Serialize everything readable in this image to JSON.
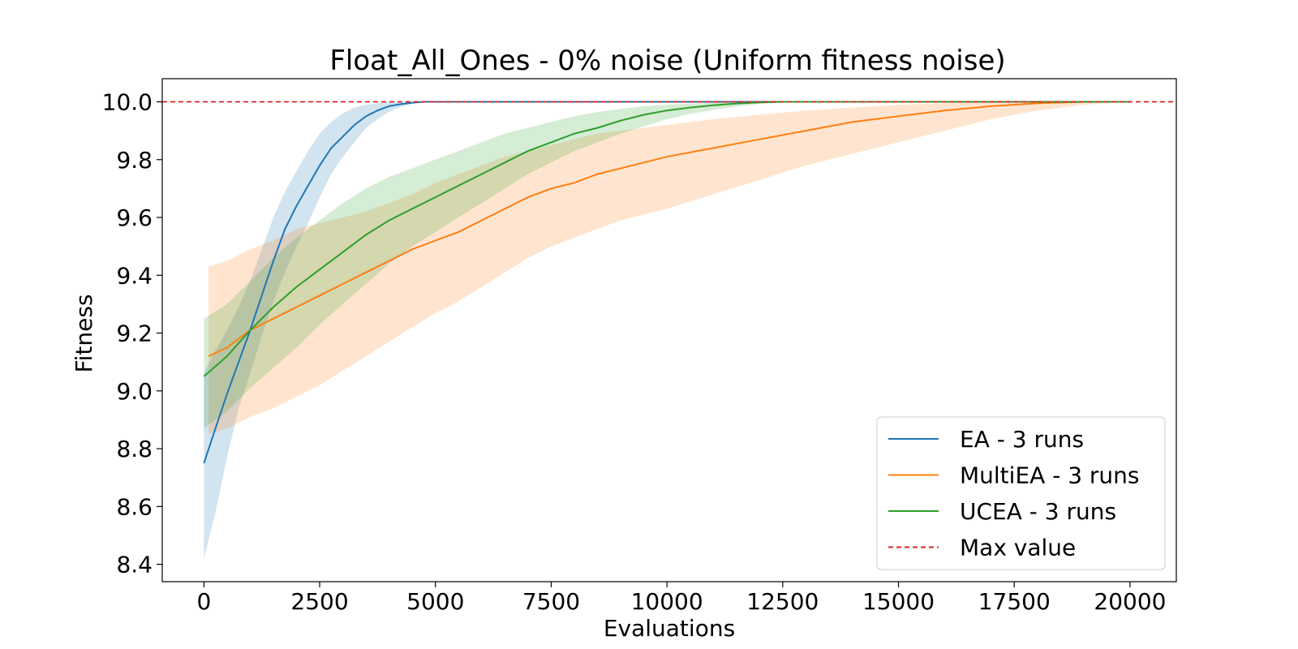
{
  "chart_data": {
    "type": "line",
    "title": "Float_All_Ones - 0% noise (Uniform fitness noise)",
    "xlabel": "Evaluations",
    "ylabel": "Fitness",
    "xlim": [
      -900,
      21000
    ],
    "ylim": [
      8.34,
      10.08
    ],
    "xticks": [
      0,
      2500,
      5000,
      7500,
      10000,
      12500,
      15000,
      17500,
      20000
    ],
    "yticks": [
      8.4,
      8.6,
      8.8,
      9.0,
      9.2,
      9.4,
      9.6,
      9.8,
      10.0
    ],
    "ytick_labels": [
      "8.4",
      "8.6",
      "8.8",
      "9.0",
      "9.2",
      "9.4",
      "9.6",
      "9.8",
      "10.0"
    ],
    "legend_position": "lower-right",
    "series": [
      {
        "name": "EA - 3 runs",
        "color": "#1f77b4",
        "x": [
          0,
          250,
          500,
          750,
          1000,
          1250,
          1500,
          1750,
          2000,
          2250,
          2500,
          2750,
          3000,
          3250,
          3500,
          3750,
          4000,
          4250,
          4500,
          4750,
          5000,
          20000
        ],
        "mean": [
          8.75,
          8.87,
          8.99,
          9.1,
          9.21,
          9.33,
          9.45,
          9.56,
          9.64,
          9.71,
          9.78,
          9.84,
          9.88,
          9.92,
          9.95,
          9.97,
          9.985,
          9.992,
          9.997,
          10.0,
          10.0,
          10.0
        ],
        "lower": [
          8.42,
          8.58,
          8.77,
          8.94,
          9.06,
          9.19,
          9.31,
          9.41,
          9.5,
          9.58,
          9.67,
          9.75,
          9.81,
          9.86,
          9.91,
          9.94,
          9.965,
          9.982,
          9.993,
          10.0,
          10.0,
          10.0
        ],
        "upper": [
          9.06,
          9.14,
          9.21,
          9.29,
          9.38,
          9.49,
          9.6,
          9.69,
          9.76,
          9.83,
          9.89,
          9.93,
          9.96,
          9.98,
          9.99,
          9.995,
          10.0,
          10.0,
          10.0,
          10.0,
          10.0,
          10.0
        ]
      },
      {
        "name": "MultiEA - 3 runs",
        "color": "#ff7f0e",
        "x": [
          100,
          500,
          1000,
          1500,
          2000,
          2500,
          3000,
          3500,
          4000,
          4500,
          5000,
          5500,
          6000,
          6500,
          7000,
          7500,
          8000,
          8500,
          9000,
          9500,
          10000,
          11000,
          12000,
          13000,
          14000,
          15000,
          16000,
          17000,
          18000,
          19000,
          20000
        ],
        "mean": [
          9.12,
          9.15,
          9.21,
          9.25,
          9.29,
          9.33,
          9.37,
          9.41,
          9.45,
          9.49,
          9.52,
          9.55,
          9.59,
          9.63,
          9.67,
          9.7,
          9.72,
          9.75,
          9.77,
          9.79,
          9.81,
          9.84,
          9.87,
          9.9,
          9.93,
          9.95,
          9.97,
          9.985,
          9.995,
          10.0,
          10.0
        ],
        "lower": [
          8.85,
          8.87,
          8.91,
          8.94,
          8.98,
          9.02,
          9.07,
          9.12,
          9.17,
          9.22,
          9.27,
          9.31,
          9.36,
          9.41,
          9.46,
          9.5,
          9.53,
          9.56,
          9.59,
          9.61,
          9.63,
          9.68,
          9.73,
          9.78,
          9.82,
          9.86,
          9.9,
          9.94,
          9.97,
          9.99,
          10.0
        ],
        "upper": [
          9.43,
          9.45,
          9.49,
          9.52,
          9.56,
          9.58,
          9.6,
          9.62,
          9.65,
          9.68,
          9.72,
          9.75,
          9.78,
          9.81,
          9.83,
          9.85,
          9.87,
          9.89,
          9.9,
          9.91,
          9.92,
          9.94,
          9.955,
          9.97,
          9.98,
          9.99,
          9.995,
          10.0,
          10.0,
          10.0,
          10.0
        ]
      },
      {
        "name": "UCEA - 3 runs",
        "color": "#2ca02c",
        "x": [
          0,
          500,
          1000,
          1500,
          2000,
          2500,
          3000,
          3500,
          4000,
          4500,
          5000,
          5500,
          6000,
          6500,
          7000,
          7500,
          8000,
          8500,
          9000,
          9500,
          10000,
          10500,
          11000,
          11500,
          12000,
          12500,
          13000,
          14000,
          16000,
          20000
        ],
        "mean": [
          9.05,
          9.12,
          9.21,
          9.29,
          9.36,
          9.42,
          9.48,
          9.54,
          9.59,
          9.63,
          9.67,
          9.71,
          9.75,
          9.79,
          9.83,
          9.86,
          9.89,
          9.91,
          9.935,
          9.955,
          9.97,
          9.98,
          9.988,
          9.994,
          9.998,
          10.0,
          10.0,
          10.0,
          10.0,
          10.0
        ],
        "lower": [
          8.87,
          8.93,
          9.01,
          9.08,
          9.15,
          9.23,
          9.3,
          9.37,
          9.44,
          9.5,
          9.55,
          9.6,
          9.65,
          9.7,
          9.75,
          9.79,
          9.83,
          9.86,
          9.89,
          9.915,
          9.94,
          9.958,
          9.972,
          9.984,
          9.993,
          9.998,
          10.0,
          10.0,
          10.0,
          10.0
        ],
        "upper": [
          9.25,
          9.3,
          9.38,
          9.46,
          9.53,
          9.59,
          9.65,
          9.7,
          9.74,
          9.77,
          9.8,
          9.83,
          9.86,
          9.89,
          9.91,
          9.93,
          9.95,
          9.965,
          9.975,
          9.985,
          9.99,
          9.994,
          9.997,
          9.999,
          10.0,
          10.0,
          10.0,
          10.0,
          10.0,
          10.0
        ]
      }
    ],
    "reference_line": {
      "name": "Max value",
      "y": 10.0,
      "color": "#d62728",
      "style": "dashed"
    }
  }
}
